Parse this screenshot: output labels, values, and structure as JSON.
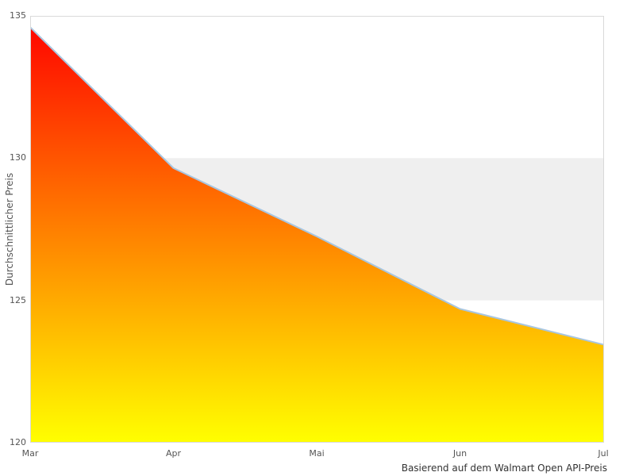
{
  "chart_data": {
    "type": "area",
    "categories": [
      "Mar",
      "Apr",
      "Mai",
      "Jun",
      "Jul"
    ],
    "values": [
      134.6,
      129.65,
      127.25,
      124.7,
      123.45
    ],
    "title": "",
    "xlabel": "",
    "ylabel": "Durchschnittlicher Preis",
    "caption": "Basierend auf dem Walmart Open API-Preis",
    "ylim": [
      120,
      135
    ],
    "yticks": [
      135,
      130,
      125,
      120
    ],
    "plot_band": {
      "from": 125,
      "to": 130,
      "color": "#efefef"
    },
    "legend": "none",
    "grid": "off",
    "colors": {
      "area_gradient_top": "#ff0000",
      "area_gradient_bottom": "#ffff00",
      "line": "#a8c6e0",
      "plot_border": "#d9d9d9",
      "tick_text": "#555555",
      "caption_text": "#333333"
    }
  }
}
